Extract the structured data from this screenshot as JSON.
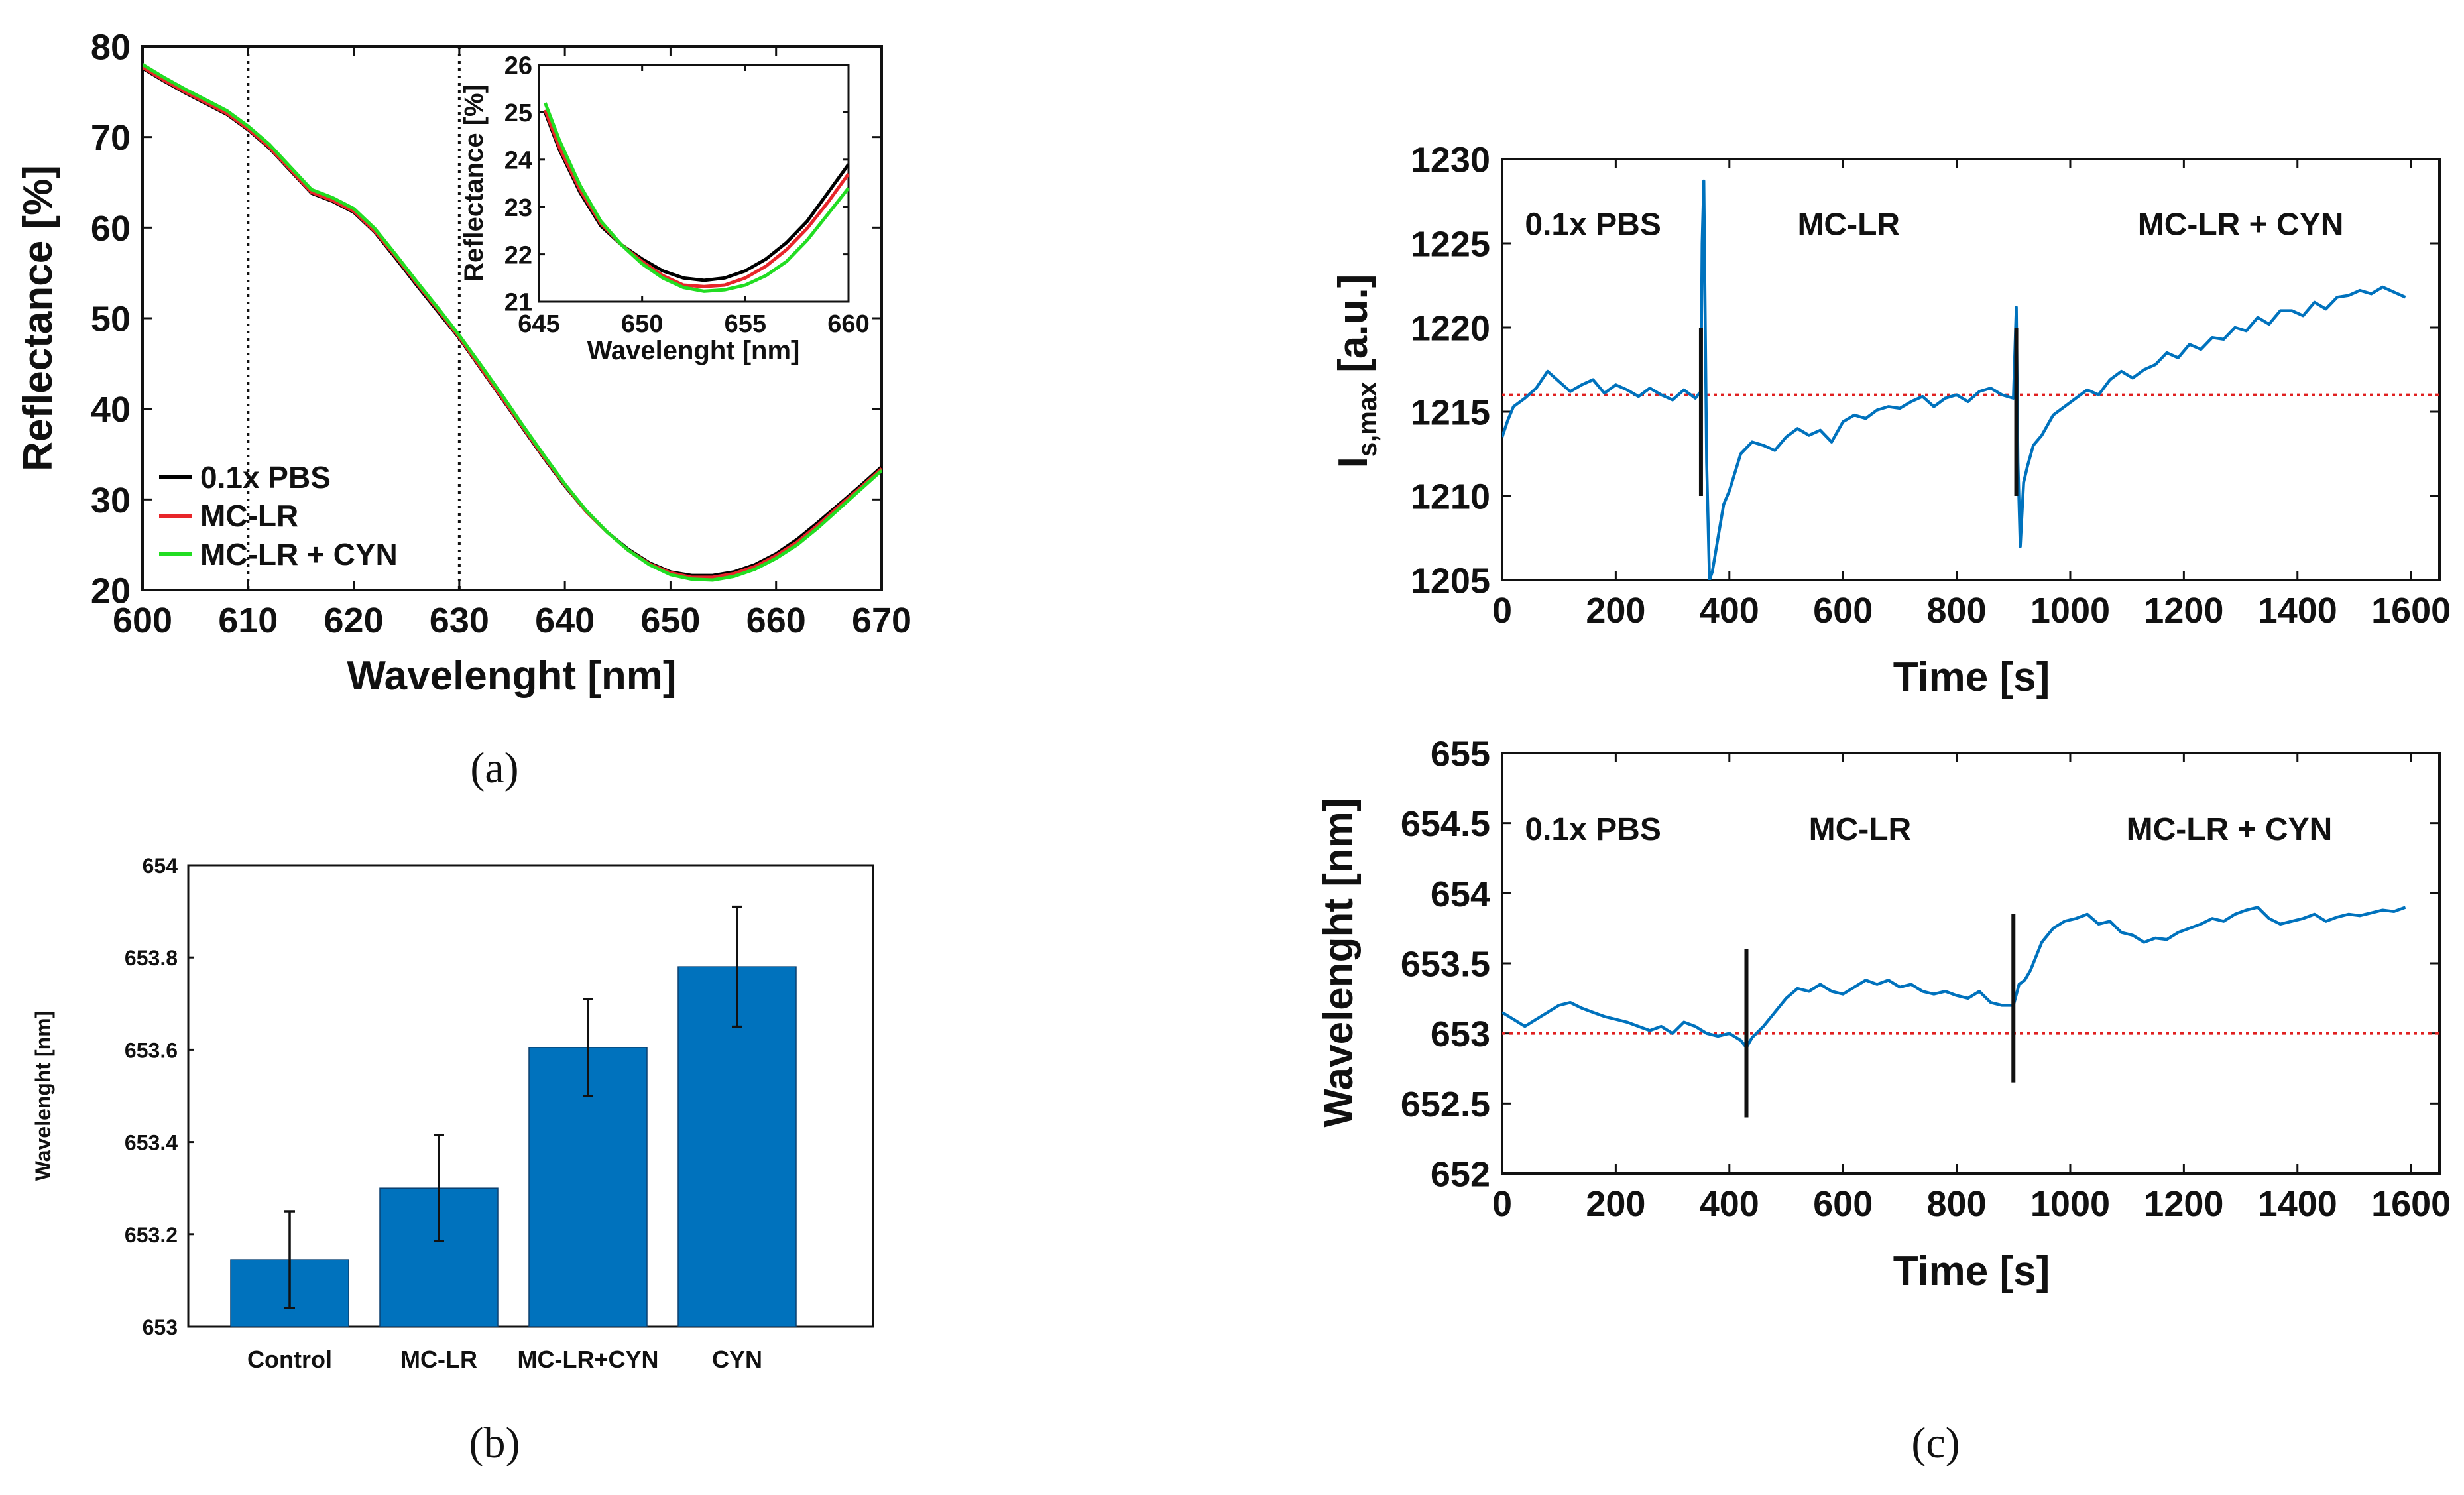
{
  "panel_labels": {
    "a": "(a)",
    "b": "(b)",
    "c": "(c)"
  },
  "chart_data": [
    {
      "id": "a",
      "type": "line",
      "title": "",
      "xlabel": "Wavelenght [nm]",
      "ylabel": "Reflectance [%]",
      "xlim": [
        600,
        670
      ],
      "ylim": [
        20,
        80
      ],
      "xticks": [
        "600",
        "610",
        "620",
        "630",
        "640",
        "650",
        "660",
        "670"
      ],
      "yticks": [
        "20",
        "30",
        "40",
        "50",
        "60",
        "70",
        "80"
      ],
      "vlines": [
        610,
        630
      ],
      "legend_position": "lower-left",
      "series": [
        {
          "name": "0.1x PBS",
          "color": "#000000",
          "x": [
            600,
            602,
            604,
            606,
            608,
            610,
            612,
            614,
            616,
            618,
            620,
            622,
            624,
            626,
            628,
            630,
            632,
            634,
            636,
            638,
            640,
            642,
            644,
            646,
            648,
            650,
            652,
            654,
            656,
            658,
            660,
            662,
            664,
            666,
            668,
            670
          ],
          "y": [
            77.6,
            76.2,
            74.9,
            73.7,
            72.5,
            70.8,
            68.8,
            66.3,
            63.8,
            62.9,
            61.7,
            59.5,
            56.6,
            53.6,
            50.7,
            47.8,
            44.5,
            41.2,
            37.9,
            34.6,
            31.5,
            28.7,
            26.4,
            24.5,
            23.0,
            22.0,
            21.6,
            21.6,
            22.0,
            22.8,
            24.0,
            25.6,
            27.5,
            29.5,
            31.5,
            33.6
          ]
        },
        {
          "name": "MC-LR",
          "color": "#e8262a",
          "x": [
            600,
            602,
            604,
            606,
            608,
            610,
            612,
            614,
            616,
            618,
            620,
            622,
            624,
            626,
            628,
            630,
            632,
            634,
            636,
            638,
            640,
            642,
            644,
            646,
            648,
            650,
            652,
            654,
            656,
            658,
            660,
            662,
            664,
            666,
            668,
            670
          ],
          "y": [
            77.7,
            76.3,
            75.0,
            73.8,
            72.6,
            70.9,
            68.9,
            66.4,
            63.9,
            63.0,
            61.8,
            59.6,
            56.8,
            53.8,
            50.9,
            47.9,
            44.6,
            41.3,
            38.0,
            34.7,
            31.6,
            28.7,
            26.4,
            24.4,
            22.9,
            21.9,
            21.4,
            21.4,
            21.8,
            22.6,
            23.8,
            25.3,
            27.2,
            29.3,
            31.3,
            33.4
          ]
        },
        {
          "name": "MC-LR + CYN",
          "color": "#22dd22",
          "x": [
            600,
            602,
            604,
            606,
            608,
            610,
            612,
            614,
            616,
            618,
            620,
            622,
            624,
            626,
            628,
            630,
            632,
            634,
            636,
            638,
            640,
            642,
            644,
            646,
            648,
            650,
            652,
            654,
            656,
            658,
            660,
            662,
            664,
            666,
            668,
            670
          ],
          "y": [
            78.0,
            76.6,
            75.3,
            74.1,
            72.9,
            71.2,
            69.2,
            66.7,
            64.2,
            63.3,
            62.1,
            59.9,
            57.0,
            54.0,
            51.1,
            48.1,
            44.9,
            41.6,
            38.2,
            34.9,
            31.7,
            28.8,
            26.4,
            24.4,
            22.8,
            21.7,
            21.2,
            21.1,
            21.5,
            22.3,
            23.5,
            25.0,
            26.9,
            29.0,
            31.1,
            33.2
          ]
        }
      ],
      "inset": {
        "xlabel": "Wavelenght [nm]",
        "ylabel": "Reflectance [%]",
        "xlim": [
          645,
          660
        ],
        "ylim": [
          21,
          26
        ],
        "xticks": [
          "645",
          "650",
          "655",
          "660"
        ],
        "yticks": [
          "21",
          "22",
          "23",
          "24",
          "25",
          "26"
        ],
        "series": [
          {
            "name": "0.1x PBS",
            "color": "#000000",
            "x": [
              645.3,
              646,
              647,
              648,
              649,
              650,
              651,
              652,
              653,
              654,
              655,
              656,
              657,
              658,
              659,
              660
            ],
            "y": [
              25.0,
              24.2,
              23.3,
              22.6,
              22.2,
              21.9,
              21.65,
              21.5,
              21.45,
              21.5,
              21.65,
              21.9,
              22.25,
              22.7,
              23.3,
              23.9
            ]
          },
          {
            "name": "MC-LR",
            "color": "#e8262a",
            "x": [
              645.3,
              646,
              647,
              648,
              649,
              650,
              651,
              652,
              653,
              654,
              655,
              656,
              657,
              658,
              659,
              660
            ],
            "y": [
              25.05,
              24.25,
              23.35,
              22.65,
              22.2,
              21.85,
              21.55,
              21.35,
              21.32,
              21.35,
              21.5,
              21.75,
              22.1,
              22.55,
              23.1,
              23.7
            ]
          },
          {
            "name": "MC-LR + CYN",
            "color": "#22dd22",
            "x": [
              645.3,
              646,
              647,
              648,
              649,
              650,
              651,
              652,
              653,
              654,
              655,
              656,
              657,
              658,
              659,
              660
            ],
            "y": [
              25.2,
              24.4,
              23.45,
              22.7,
              22.2,
              21.8,
              21.5,
              21.3,
              21.22,
              21.25,
              21.35,
              21.55,
              21.85,
              22.3,
              22.85,
              23.4
            ]
          }
        ]
      }
    },
    {
      "id": "b",
      "type": "bar",
      "title": "",
      "xlabel": "",
      "ylabel": "Wavelenght [nm]",
      "ylim": [
        653,
        654
      ],
      "yticks": [
        "653",
        "653.2",
        "653.4",
        "653.6",
        "653.8",
        "654"
      ],
      "categories": [
        "Control",
        "MC-LR",
        "MC-LR+CYN",
        "CYN"
      ],
      "values": [
        653.145,
        653.3,
        653.605,
        653.78
      ],
      "errors": [
        0.105,
        0.115,
        0.105,
        0.13
      ],
      "color": "#0072bd"
    },
    {
      "id": "c1",
      "type": "line",
      "title": "",
      "xlabel": "Time [s]",
      "ylabel": "Is,max [a.u.]",
      "ylabel_main": "I",
      "ylabel_sub": "s,max",
      "ylabel_unit": "[a.u.]",
      "xlim": [
        0,
        1650
      ],
      "ylim": [
        1205,
        1230
      ],
      "xticks": [
        "0",
        "200",
        "400",
        "600",
        "800",
        "1000",
        "1200",
        "1400",
        "1600"
      ],
      "yticks": [
        "1205",
        "1210",
        "1215",
        "1220",
        "1225",
        "1230"
      ],
      "reference_level": 1216,
      "markers": [
        {
          "x": 350,
          "y1": 1210,
          "y2": 1220
        },
        {
          "x": 905,
          "y1": 1210,
          "y2": 1220
        }
      ],
      "annotations": [
        {
          "text": "0.1x PBS",
          "x": 160,
          "y": 1225.5
        },
        {
          "text": "MC-LR",
          "x": 610,
          "y": 1225.5
        },
        {
          "text": "MC-LR + CYN",
          "x": 1300,
          "y": 1225.5
        }
      ],
      "series": [
        {
          "name": "signal",
          "color": "#0072bd",
          "x": [
            0,
            10,
            20,
            40,
            60,
            80,
            100,
            120,
            140,
            160,
            180,
            200,
            220,
            240,
            260,
            280,
            300,
            320,
            340,
            350,
            352,
            355,
            360,
            365,
            370,
            380,
            390,
            400,
            420,
            440,
            460,
            480,
            500,
            520,
            540,
            560,
            580,
            600,
            620,
            640,
            660,
            680,
            700,
            720,
            740,
            760,
            780,
            800,
            820,
            840,
            860,
            880,
            900,
            905,
            908,
            912,
            918,
            925,
            935,
            950,
            970,
            990,
            1010,
            1030,
            1050,
            1070,
            1090,
            1110,
            1130,
            1150,
            1170,
            1190,
            1210,
            1230,
            1250,
            1270,
            1290,
            1310,
            1330,
            1350,
            1370,
            1390,
            1410,
            1430,
            1450,
            1470,
            1490,
            1510,
            1530,
            1550,
            1570,
            1590
          ],
          "y": [
            1213.5,
            1214.5,
            1215.3,
            1215.8,
            1216.4,
            1217.4,
            1216.8,
            1216.2,
            1216.6,
            1216.9,
            1216.1,
            1216.6,
            1216.3,
            1215.9,
            1216.4,
            1216.0,
            1215.7,
            1216.3,
            1215.8,
            1216.2,
            1225.0,
            1228.7,
            1212.0,
            1205.0,
            1205.5,
            1207.5,
            1209.5,
            1210.3,
            1212.5,
            1213.2,
            1213.0,
            1212.7,
            1213.5,
            1214.0,
            1213.6,
            1213.9,
            1213.2,
            1214.4,
            1214.8,
            1214.6,
            1215.1,
            1215.3,
            1215.2,
            1215.6,
            1215.9,
            1215.3,
            1215.8,
            1216.0,
            1215.6,
            1216.2,
            1216.4,
            1216.0,
            1215.8,
            1221.2,
            1212.0,
            1207.0,
            1210.8,
            1211.8,
            1213.0,
            1213.6,
            1214.8,
            1215.3,
            1215.8,
            1216.3,
            1216.0,
            1216.9,
            1217.4,
            1217.0,
            1217.5,
            1217.8,
            1218.5,
            1218.2,
            1219.0,
            1218.7,
            1219.4,
            1219.3,
            1220.0,
            1219.8,
            1220.6,
            1220.2,
            1221.0,
            1221.0,
            1220.7,
            1221.5,
            1221.1,
            1221.8,
            1221.9,
            1222.2,
            1222.0,
            1222.4,
            1222.1,
            1221.8
          ]
        }
      ]
    },
    {
      "id": "c2",
      "type": "line",
      "title": "",
      "xlabel": "Time [s]",
      "ylabel": "Wavelenght [nm]",
      "xlim": [
        0,
        1650
      ],
      "ylim": [
        652,
        655
      ],
      "xticks": [
        "0",
        "200",
        "400",
        "600",
        "800",
        "1000",
        "1200",
        "1400",
        "1600"
      ],
      "yticks": [
        "652",
        "652.5",
        "653",
        "653.5",
        "654",
        "654.5",
        "655"
      ],
      "reference_level": 653,
      "markers": [
        {
          "x": 430,
          "y1": 652.4,
          "y2": 653.6
        },
        {
          "x": 900,
          "y1": 652.65,
          "y2": 653.85
        }
      ],
      "annotations": [
        {
          "text": "0.1x PBS",
          "x": 160,
          "y": 654.38
        },
        {
          "text": "MC-LR",
          "x": 630,
          "y": 654.38
        },
        {
          "text": "MC-LR + CYN",
          "x": 1280,
          "y": 654.38
        }
      ],
      "series": [
        {
          "name": "signal",
          "color": "#0072bd",
          "x": [
            0,
            20,
            40,
            60,
            80,
            100,
            120,
            140,
            160,
            180,
            200,
            220,
            240,
            260,
            280,
            300,
            320,
            340,
            360,
            380,
            400,
            420,
            430,
            440,
            460,
            480,
            500,
            520,
            540,
            560,
            580,
            600,
            620,
            640,
            660,
            680,
            700,
            720,
            740,
            760,
            780,
            800,
            820,
            840,
            860,
            880,
            900,
            910,
            920,
            930,
            950,
            970,
            990,
            1010,
            1030,
            1050,
            1070,
            1090,
            1110,
            1130,
            1150,
            1170,
            1190,
            1210,
            1230,
            1250,
            1270,
            1290,
            1310,
            1330,
            1350,
            1370,
            1390,
            1410,
            1430,
            1450,
            1470,
            1490,
            1510,
            1530,
            1550,
            1570,
            1590
          ],
          "y": [
            653.15,
            653.1,
            653.05,
            653.1,
            653.15,
            653.2,
            653.22,
            653.18,
            653.15,
            653.12,
            653.1,
            653.08,
            653.05,
            653.02,
            653.05,
            653.0,
            653.08,
            653.05,
            653.0,
            652.98,
            653.0,
            652.95,
            652.9,
            652.97,
            653.05,
            653.15,
            653.25,
            653.32,
            653.3,
            653.35,
            653.3,
            653.28,
            653.33,
            653.38,
            653.35,
            653.38,
            653.33,
            653.35,
            653.3,
            653.28,
            653.3,
            653.27,
            653.25,
            653.3,
            653.22,
            653.2,
            653.2,
            653.35,
            653.38,
            653.45,
            653.65,
            653.75,
            653.8,
            653.82,
            653.85,
            653.78,
            653.8,
            653.72,
            653.7,
            653.65,
            653.68,
            653.67,
            653.72,
            653.75,
            653.78,
            653.82,
            653.8,
            653.85,
            653.88,
            653.9,
            653.82,
            653.78,
            653.8,
            653.82,
            653.85,
            653.8,
            653.83,
            653.85,
            653.84,
            653.86,
            653.88,
            653.87,
            653.9
          ]
        }
      ]
    }
  ]
}
